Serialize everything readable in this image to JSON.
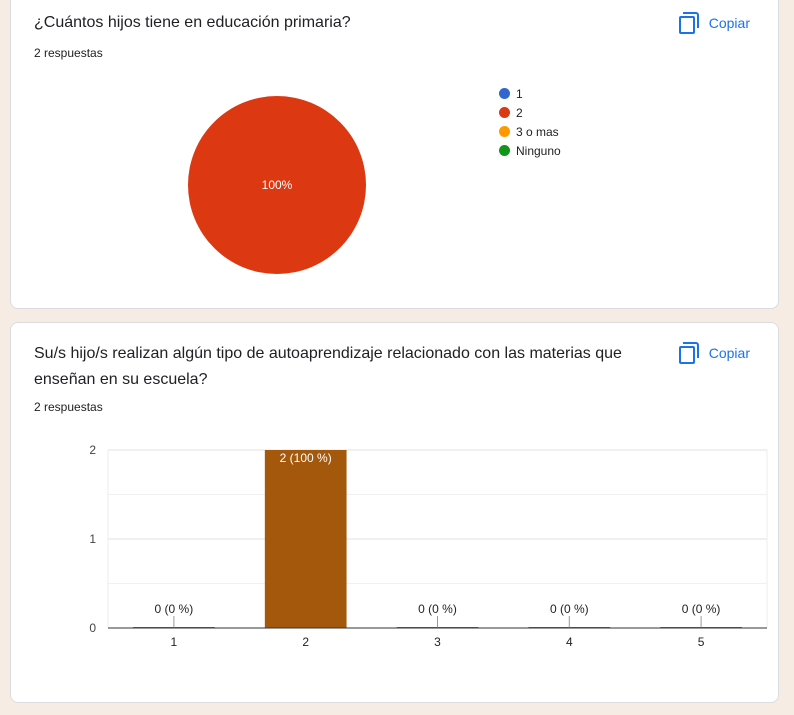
{
  "question1": {
    "title": "¿Cuántos hijos tiene en educación primaria?",
    "responses": "2 respuestas",
    "copy_label": "Copiar",
    "legend": [
      {
        "label": "1",
        "color": "#3366cc"
      },
      {
        "label": "2",
        "color": "#dc3912"
      },
      {
        "label": "3 o mas",
        "color": "#ff9900"
      },
      {
        "label": "Ninguno",
        "color": "#109618"
      }
    ]
  },
  "question2": {
    "title": "Su/s hijo/s realizan algún tipo de autoaprendizaje relacionado con las materias que enseñan en su escuela?",
    "responses": "2 respuestas",
    "copy_label": "Copiar"
  },
  "chart_data": [
    {
      "type": "pie",
      "categories": [
        "1",
        "2",
        "3 o mas",
        "Ninguno"
      ],
      "values": [
        0,
        2,
        0,
        0
      ],
      "colors": [
        "#3366cc",
        "#dc3912",
        "#ff9900",
        "#109618"
      ],
      "slice_labels": [
        "100%"
      ],
      "legend_position": "right"
    },
    {
      "type": "bar",
      "categories": [
        "1",
        "2",
        "3",
        "4",
        "5"
      ],
      "values": [
        0,
        2,
        0,
        0,
        0
      ],
      "data_labels": [
        "0 (0 %)",
        "2 (100 %)",
        "0 (0 %)",
        "0 (0 %)",
        "0 (0 %)"
      ],
      "y_ticks": [
        "0",
        "1",
        "2"
      ],
      "ylim": [
        0,
        2
      ],
      "bar_color": "#a3580c",
      "grid": true
    }
  ]
}
